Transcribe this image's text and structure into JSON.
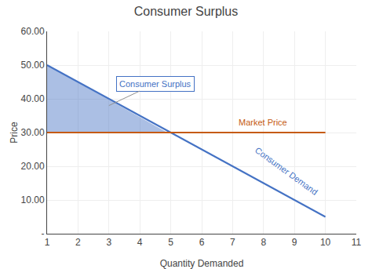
{
  "chart_data": {
    "type": "line",
    "title": "Consumer Surplus",
    "xlabel": "Quantity Demanded",
    "ylabel": "Price",
    "xlim": [
      1,
      11
    ],
    "ylim": [
      0,
      60
    ],
    "xticks": [
      1,
      2,
      3,
      4,
      5,
      6,
      7,
      8,
      9,
      10,
      11
    ],
    "yticks": [
      {
        "value": 0,
        "label": "-"
      },
      {
        "value": 10,
        "label": "10.00"
      },
      {
        "value": 20,
        "label": "20.00"
      },
      {
        "value": 30,
        "label": "30.00"
      },
      {
        "value": 40,
        "label": "40.00"
      },
      {
        "value": 50,
        "label": "50.00"
      },
      {
        "value": 60,
        "label": "60.00"
      }
    ],
    "grid": true,
    "series": [
      {
        "type": "area",
        "color": "#4472C4",
        "x": [
          1,
          4.889,
          1
        ],
        "values": [
          50,
          30,
          30
        ]
      },
      {
        "type": "line",
        "color": "#4472C4",
        "x": [
          1,
          10
        ],
        "values": [
          50,
          5
        ]
      },
      {
        "type": "line",
        "color": "#C55A11",
        "x": [
          1,
          10
        ],
        "values": [
          30,
          30
        ]
      }
    ],
    "annotations": [
      {
        "text": "Consumer Surplus",
        "x": 3.0,
        "y": 38.0,
        "text_x": 4.5,
        "text_y": 44.5,
        "color": "#4472C4"
      },
      {
        "text": "Market Price",
        "x": 7.15,
        "y": 31.2,
        "color": "#C55A11"
      },
      {
        "text": "Consumer Demand",
        "x": 7.6,
        "y": 18.5,
        "color": "#4472C4"
      }
    ]
  }
}
